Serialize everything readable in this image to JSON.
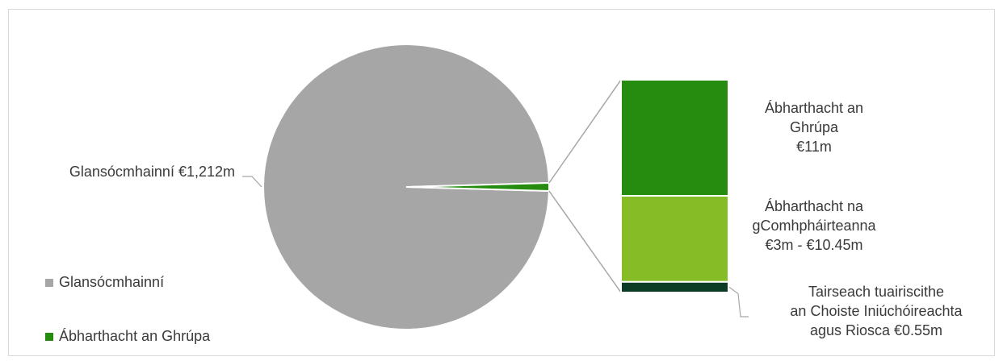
{
  "chart_data": {
    "type": "pie",
    "title": "",
    "pie": {
      "slices": [
        {
          "name": "Glansócmhainní",
          "value": 1212,
          "label": "Glansócmhainní €1,212m",
          "color": "#a6a6a6"
        },
        {
          "name": "Ábharthacht an Ghrúpa",
          "value": 11,
          "label": "",
          "color": "#268c0f"
        }
      ]
    },
    "breakdown": {
      "source_slice": "Ábharthacht an Ghrúpa",
      "total": 11,
      "segments": [
        {
          "name": "Ábharthacht an Ghrúpa",
          "value": 6.0,
          "label": [
            "Ábharthacht an",
            "Ghrúpa",
            "€11m"
          ],
          "color": "#268c0f"
        },
        {
          "name": "Ábharthacht na gComhpháirteanna",
          "value": 4.45,
          "label": [
            "Ábharthacht na",
            "gComhpháirteanna",
            "€3m - €10.45m"
          ],
          "color": "#86bc25"
        },
        {
          "name": "Tairseach tuairiscithe an Choiste Iniúchóireachta agus Riosca",
          "value": 0.55,
          "label": [
            "Tairseach tuairiscithe",
            "an Choiste Iniúchóireachta",
            "agus Riosca €0.55m"
          ],
          "color": "#0c3c26"
        }
      ]
    },
    "legend": {
      "position": "bottom-left",
      "items": [
        {
          "label": "Glansócmhainní",
          "color": "#a6a6a6"
        },
        {
          "label": "Ábharthacht an Ghrúpa",
          "color": "#268c0f"
        }
      ]
    }
  }
}
